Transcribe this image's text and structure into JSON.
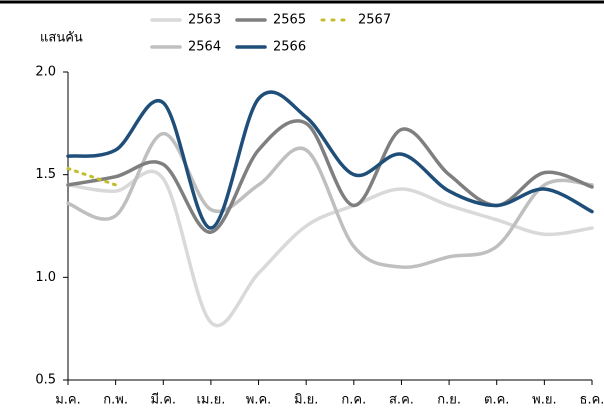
{
  "chart_data": {
    "type": "line",
    "y_label": "แสนคัน",
    "categories": [
      "ม.ค.",
      "ก.พ.",
      "มี.ค.",
      "เม.ย.",
      "พ.ค.",
      "มิ.ย.",
      "ก.ค.",
      "ส.ค.",
      "ก.ย.",
      "ต.ค.",
      "พ.ย.",
      "ธ.ค."
    ],
    "series": [
      {
        "name": "2563",
        "color": "#d9d9d9",
        "style": "solid",
        "values": [
          1.45,
          1.42,
          1.48,
          0.78,
          1.02,
          1.25,
          1.35,
          1.43,
          1.35,
          1.28,
          1.21,
          1.24
        ]
      },
      {
        "name": "2564",
        "color": "#bfbfbf",
        "style": "solid",
        "values": [
          1.36,
          1.3,
          1.7,
          1.33,
          1.45,
          1.62,
          1.15,
          1.05,
          1.1,
          1.15,
          1.45,
          1.45
        ]
      },
      {
        "name": "2565",
        "color": "#7f7f7f",
        "style": "solid",
        "values": [
          1.45,
          1.49,
          1.55,
          1.22,
          1.62,
          1.75,
          1.35,
          1.72,
          1.5,
          1.35,
          1.51,
          1.44
        ]
      },
      {
        "name": "2566",
        "color": "#1f4e79",
        "style": "solid",
        "values": [
          1.59,
          1.62,
          1.85,
          1.24,
          1.87,
          1.78,
          1.5,
          1.6,
          1.42,
          1.35,
          1.43,
          1.32
        ]
      },
      {
        "name": "2567",
        "color": "#c4bd2b",
        "style": "dotted",
        "values": [
          1.53,
          1.45,
          null,
          null,
          null,
          null,
          null,
          null,
          null,
          null,
          null,
          null
        ]
      }
    ],
    "ylim": [
      0.5,
      2.0
    ],
    "yticks": [
      {
        "value": 0.5,
        "label": "0.5"
      },
      {
        "value": 1.0,
        "label": "1.0"
      },
      1.5,
      {
        "value": 2.0,
        "label": "2.0"
      }
    ]
  }
}
